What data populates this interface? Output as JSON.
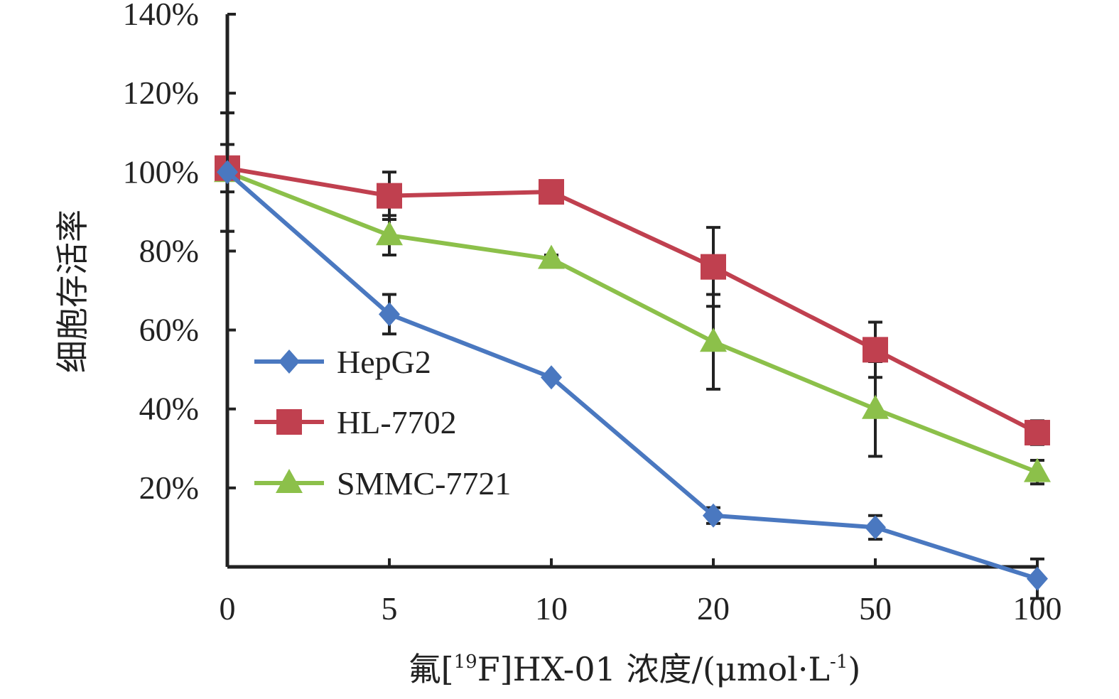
{
  "chart_data": {
    "type": "line",
    "title": "",
    "xlabel": {
      "main": "氟[",
      "sup1": "19",
      "mid": "F]HX-01 浓度/(μmol·L",
      "sup2": "-1",
      "end": ")"
    },
    "ylabel": "细胞存活率",
    "x": [
      "0",
      "5",
      "10",
      "20",
      "50",
      "100"
    ],
    "yticks": [
      "20%",
      "40%",
      "60%",
      "80%",
      "100%",
      "120%",
      "140%"
    ],
    "ylim": [
      0,
      140
    ],
    "grid": false,
    "legend_position": "center-left",
    "series": [
      {
        "name": "HepG2",
        "color": "#4a78c0",
        "marker": "diamond",
        "values": [
          100,
          64,
          48,
          13,
          10,
          -3
        ],
        "errors": [
          15,
          5,
          0,
          2,
          3,
          5
        ]
      },
      {
        "name": "HL-7702",
        "color": "#c0404f",
        "marker": "square",
        "values": [
          101,
          94,
          95,
          76,
          55,
          34
        ],
        "errors": [
          6,
          6,
          2,
          10,
          7,
          3
        ]
      },
      {
        "name": "SMMC-7721",
        "color": "#8cc04a",
        "marker": "triangle",
        "values": [
          100,
          84,
          78,
          57,
          40,
          24
        ],
        "errors": [
          15,
          5,
          1,
          12,
          12,
          3
        ]
      }
    ]
  }
}
